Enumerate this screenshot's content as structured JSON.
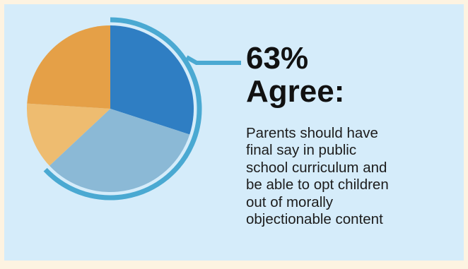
{
  "headline": {
    "percent": "63%",
    "label": "Agree:"
  },
  "description_lines": [
    "Parents should have",
    "final say in public",
    "school curriculum and",
    "be able to opt children",
    "out of morally",
    "objectionable content"
  ],
  "colors": {
    "page_background": "#fdf3e1",
    "card_background": "#d5ecfa",
    "accent_ring": "#4aa9d2",
    "text": "#111111"
  },
  "chart_data": {
    "type": "pie",
    "slices": [
      {
        "value": 30,
        "color": "#2f7ec3"
      },
      {
        "value": 33,
        "color": "#8bb9d6"
      },
      {
        "value": 13,
        "color": "#eebc70"
      },
      {
        "value": 24,
        "color": "#e5a047"
      }
    ],
    "highlighted_share_percent": 63
  }
}
